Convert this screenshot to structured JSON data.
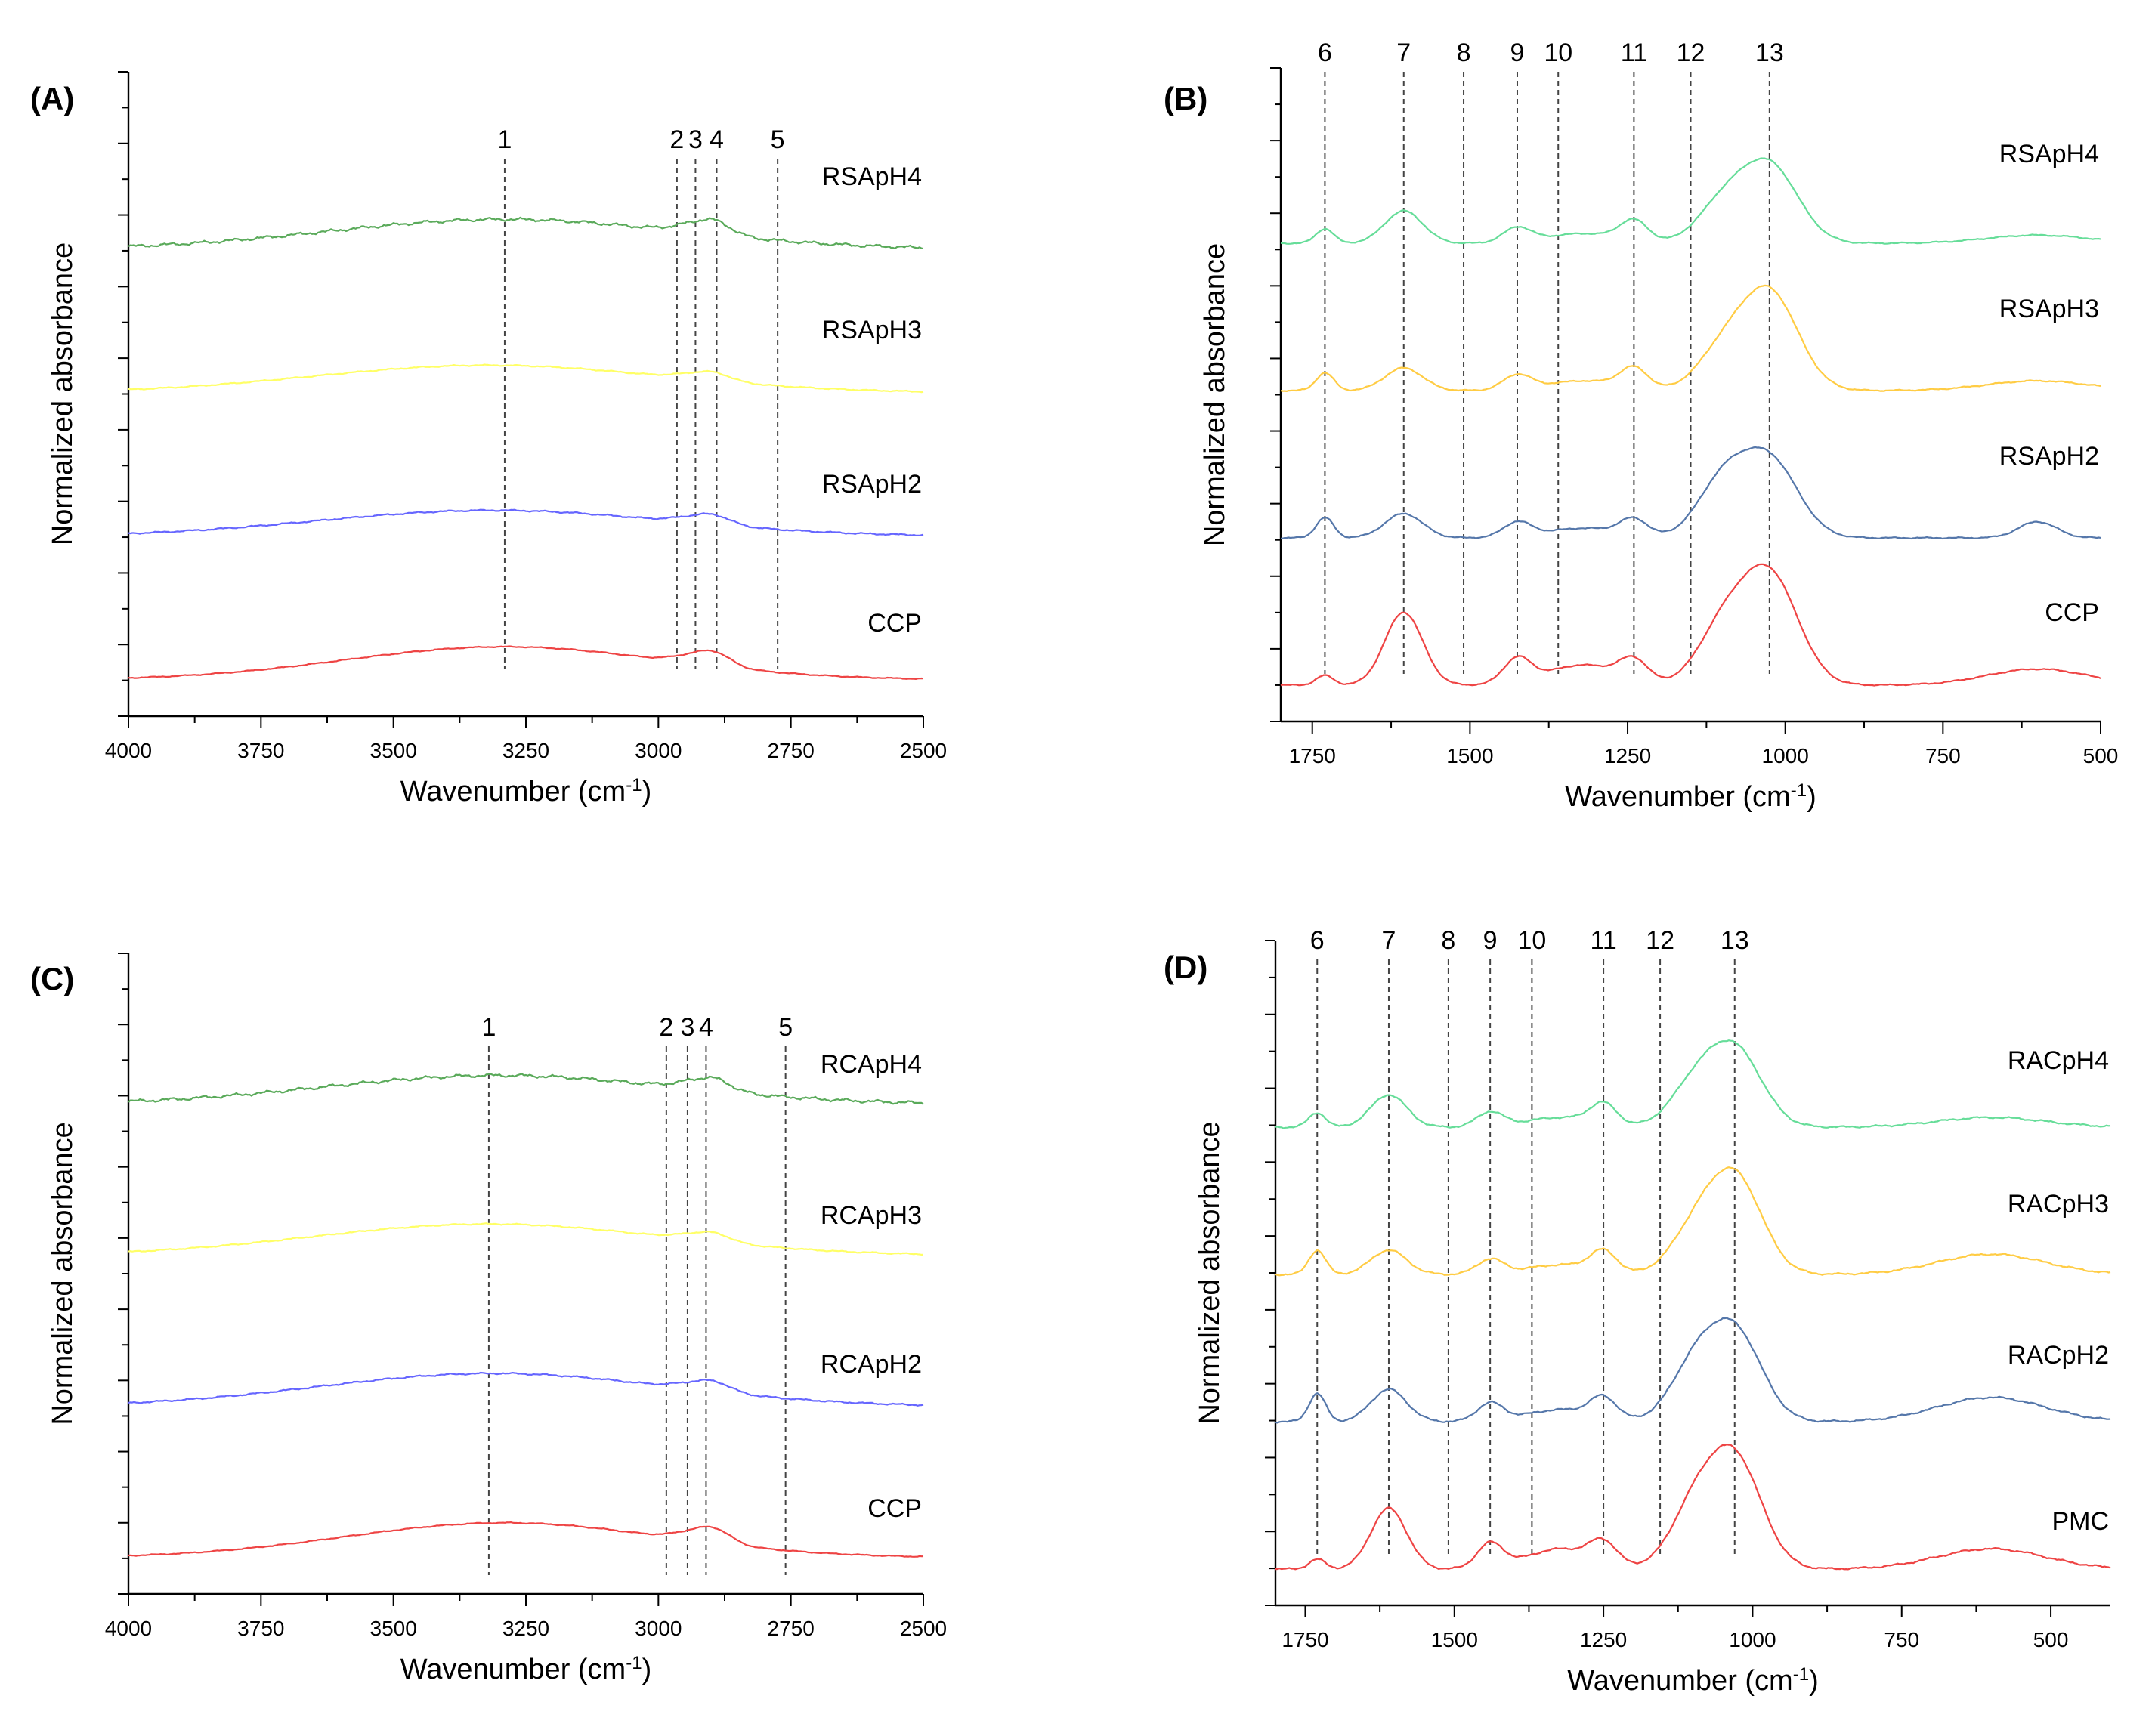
{
  "chart_data": [
    {
      "type": "line",
      "panel_label": "(A)",
      "xlabel": "Wavenumber (cm",
      "xlabel_sup": "-1",
      "xlabel_end": ")",
      "ylabel": "Normalized absorbance",
      "xlim": [
        4000,
        2500
      ],
      "xticks": [
        4000,
        3750,
        3500,
        3250,
        3000,
        2750,
        2500
      ],
      "markers": [
        {
          "label": "1",
          "x": 3290
        },
        {
          "label": "2",
          "x": 2965
        },
        {
          "label": "3",
          "x": 2930
        },
        {
          "label": "4",
          "x": 2890
        },
        {
          "label": "5",
          "x": 2775
        }
      ],
      "series": [
        {
          "name": "RSApH4",
          "color": "#5aaa5a",
          "base": 3,
          "peaks": [
            [
              3290,
              330,
              0.38
            ],
            [
              2930,
              40,
              0.1
            ],
            [
              2890,
              30,
              0.12
            ]
          ],
          "noise": 0.025
        },
        {
          "name": "RSApH3",
          "color": "#ffff66",
          "base": 2,
          "peaks": [
            [
              3320,
              330,
              0.35
            ],
            [
              2930,
              40,
              0.06
            ],
            [
              2890,
              30,
              0.07
            ]
          ],
          "noise": 0.01
        },
        {
          "name": "RSApH2",
          "color": "#6666ff",
          "base": 1,
          "peaks": [
            [
              3310,
              330,
              0.33
            ],
            [
              2930,
              40,
              0.07
            ],
            [
              2890,
              30,
              0.08
            ]
          ],
          "noise": 0.012
        },
        {
          "name": "CCP",
          "color": "#ee4444",
          "base": 0,
          "peaks": [
            [
              3290,
              300,
              0.42
            ],
            [
              2930,
              40,
              0.1
            ],
            [
              2890,
              30,
              0.12
            ]
          ],
          "noise": 0.008
        }
      ]
    },
    {
      "type": "line",
      "panel_label": "(B)",
      "xlabel": "Wavenumber (cm",
      "xlabel_sup": "-1",
      "xlabel_end": ")",
      "ylabel": "Normalized absorbance",
      "xlim": [
        1800,
        500
      ],
      "xticks": [
        1750,
        1500,
        1250,
        1000,
        750,
        500
      ],
      "markers": [
        {
          "label": "6",
          "x": 1730
        },
        {
          "label": "7",
          "x": 1605
        },
        {
          "label": "8",
          "x": 1510
        },
        {
          "label": "9",
          "x": 1425
        },
        {
          "label": "10",
          "x": 1360
        },
        {
          "label": "11",
          "x": 1240
        },
        {
          "label": "12",
          "x": 1150
        },
        {
          "label": "13",
          "x": 1025
        }
      ],
      "series": [
        {
          "name": "RSApH4",
          "color": "#66dd99",
          "base": 3,
          "peaks": [
            [
              1730,
              14,
              0.18
            ],
            [
              1605,
              30,
              0.4
            ],
            [
              1425,
              22,
              0.18
            ],
            [
              1320,
              60,
              0.12
            ],
            [
              1240,
              22,
              0.25
            ],
            [
              1100,
              40,
              0.45
            ],
            [
              1025,
              45,
              0.95
            ],
            [
              600,
              80,
              0.1
            ]
          ],
          "noise": 0.01
        },
        {
          "name": "RSApH3",
          "color": "#ffcc44",
          "base": 2,
          "peaks": [
            [
              1730,
              14,
              0.22
            ],
            [
              1605,
              30,
              0.28
            ],
            [
              1425,
              22,
              0.18
            ],
            [
              1320,
              60,
              0.12
            ],
            [
              1240,
              22,
              0.25
            ],
            [
              1100,
              40,
              0.45
            ],
            [
              1025,
              45,
              1.2
            ],
            [
              600,
              80,
              0.12
            ]
          ],
          "noise": 0.01
        },
        {
          "name": "RSApH2",
          "color": "#5577aa",
          "base": 1,
          "peaks": [
            [
              1730,
              14,
              0.25
            ],
            [
              1605,
              30,
              0.3
            ],
            [
              1425,
              22,
              0.18
            ],
            [
              1320,
              60,
              0.12
            ],
            [
              1240,
              22,
              0.2
            ],
            [
              1100,
              40,
              0.65
            ],
            [
              1025,
              45,
              0.95
            ],
            [
              600,
              30,
              0.2
            ]
          ],
          "noise": 0.01
        },
        {
          "name": "CCP",
          "color": "#ee4444",
          "base": 0,
          "peaks": [
            [
              1730,
              14,
              0.12
            ],
            [
              1605,
              30,
              0.9
            ],
            [
              1425,
              22,
              0.3
            ],
            [
              1320,
              60,
              0.25
            ],
            [
              1240,
              22,
              0.25
            ],
            [
              1100,
              40,
              0.65
            ],
            [
              1025,
              45,
              1.35
            ],
            [
              600,
              80,
              0.2
            ]
          ],
          "noise": 0.01
        }
      ]
    },
    {
      "type": "line",
      "panel_label": "(C)",
      "xlabel": "Wavenumber (cm",
      "xlabel_sup": "-1",
      "xlabel_end": ")",
      "ylabel": "Normalized absorbance",
      "xlim": [
        4000,
        2500
      ],
      "xticks": [
        4000,
        3750,
        3500,
        3250,
        3000,
        2750,
        2500
      ],
      "markers": [
        {
          "label": "1",
          "x": 3320
        },
        {
          "label": "2",
          "x": 2985
        },
        {
          "label": "3",
          "x": 2945
        },
        {
          "label": "4",
          "x": 2910
        },
        {
          "label": "5",
          "x": 2760
        }
      ],
      "series": [
        {
          "name": "RCApH4",
          "color": "#5aaa5a",
          "base": 3,
          "peaks": [
            [
              3300,
              330,
              0.35
            ],
            [
              2930,
              40,
              0.08
            ],
            [
              2890,
              30,
              0.1
            ]
          ],
          "noise": 0.025
        },
        {
          "name": "RCApH3",
          "color": "#ffff66",
          "base": 2,
          "peaks": [
            [
              3320,
              330,
              0.38
            ],
            [
              2930,
              40,
              0.06
            ],
            [
              2890,
              30,
              0.07
            ]
          ],
          "noise": 0.01
        },
        {
          "name": "RCApH2",
          "color": "#6666ff",
          "base": 1,
          "peaks": [
            [
              3310,
              330,
              0.4
            ],
            [
              2930,
              40,
              0.07
            ],
            [
              2890,
              30,
              0.08
            ]
          ],
          "noise": 0.012
        },
        {
          "name": "CCP",
          "color": "#ee4444",
          "base": 0,
          "peaks": [
            [
              3290,
              300,
              0.42
            ],
            [
              2930,
              40,
              0.1
            ],
            [
              2890,
              30,
              0.12
            ]
          ],
          "noise": 0.008
        }
      ]
    },
    {
      "type": "line",
      "panel_label": "(D)",
      "xlabel": "Wavenumber (cm",
      "xlabel_sup": "-1",
      "xlabel_end": ")",
      "ylabel": "Normalized absorbance",
      "xlim": [
        1800,
        400
      ],
      "xticks": [
        1750,
        1500,
        1250,
        1000,
        750,
        500
      ],
      "markers": [
        {
          "label": "6",
          "x": 1730
        },
        {
          "label": "7",
          "x": 1610
        },
        {
          "label": "8",
          "x": 1510
        },
        {
          "label": "9",
          "x": 1440
        },
        {
          "label": "10",
          "x": 1370
        },
        {
          "label": "11",
          "x": 1250
        },
        {
          "label": "12",
          "x": 1155
        },
        {
          "label": "13",
          "x": 1030
        }
      ],
      "series": [
        {
          "name": "RACpH4",
          "color": "#66dd99",
          "base": 3,
          "peaks": [
            [
              1730,
              14,
              0.18
            ],
            [
              1610,
              30,
              0.4
            ],
            [
              1440,
              22,
              0.18
            ],
            [
              1320,
              60,
              0.12
            ],
            [
              1250,
              22,
              0.25
            ],
            [
              1100,
              40,
              0.45
            ],
            [
              1030,
              45,
              0.95
            ],
            [
              600,
              90,
              0.12
            ]
          ],
          "noise": 0.015
        },
        {
          "name": "RACpH3",
          "color": "#ffcc44",
          "base": 2,
          "peaks": [
            [
              1730,
              14,
              0.3
            ],
            [
              1610,
              30,
              0.3
            ],
            [
              1440,
              22,
              0.18
            ],
            [
              1320,
              60,
              0.12
            ],
            [
              1250,
              22,
              0.25
            ],
            [
              1100,
              40,
              0.45
            ],
            [
              1030,
              45,
              1.2
            ],
            [
              600,
              90,
              0.25
            ]
          ],
          "noise": 0.015
        },
        {
          "name": "RACpH2",
          "color": "#5577aa",
          "base": 1,
          "peaks": [
            [
              1730,
              14,
              0.35
            ],
            [
              1610,
              30,
              0.4
            ],
            [
              1440,
              22,
              0.22
            ],
            [
              1320,
              60,
              0.15
            ],
            [
              1250,
              22,
              0.25
            ],
            [
              1100,
              40,
              0.6
            ],
            [
              1030,
              45,
              1.1
            ],
            [
              600,
              90,
              0.3
            ]
          ],
          "noise": 0.015
        },
        {
          "name": "PMC",
          "color": "#ee4444",
          "base": 0,
          "peaks": [
            [
              1730,
              14,
              0.12
            ],
            [
              1610,
              30,
              0.75
            ],
            [
              1440,
              22,
              0.3
            ],
            [
              1320,
              60,
              0.25
            ],
            [
              1250,
              22,
              0.25
            ],
            [
              1100,
              40,
              0.65
            ],
            [
              1030,
              45,
              1.35
            ],
            [
              600,
              90,
              0.25
            ]
          ],
          "noise": 0.015
        }
      ]
    }
  ]
}
